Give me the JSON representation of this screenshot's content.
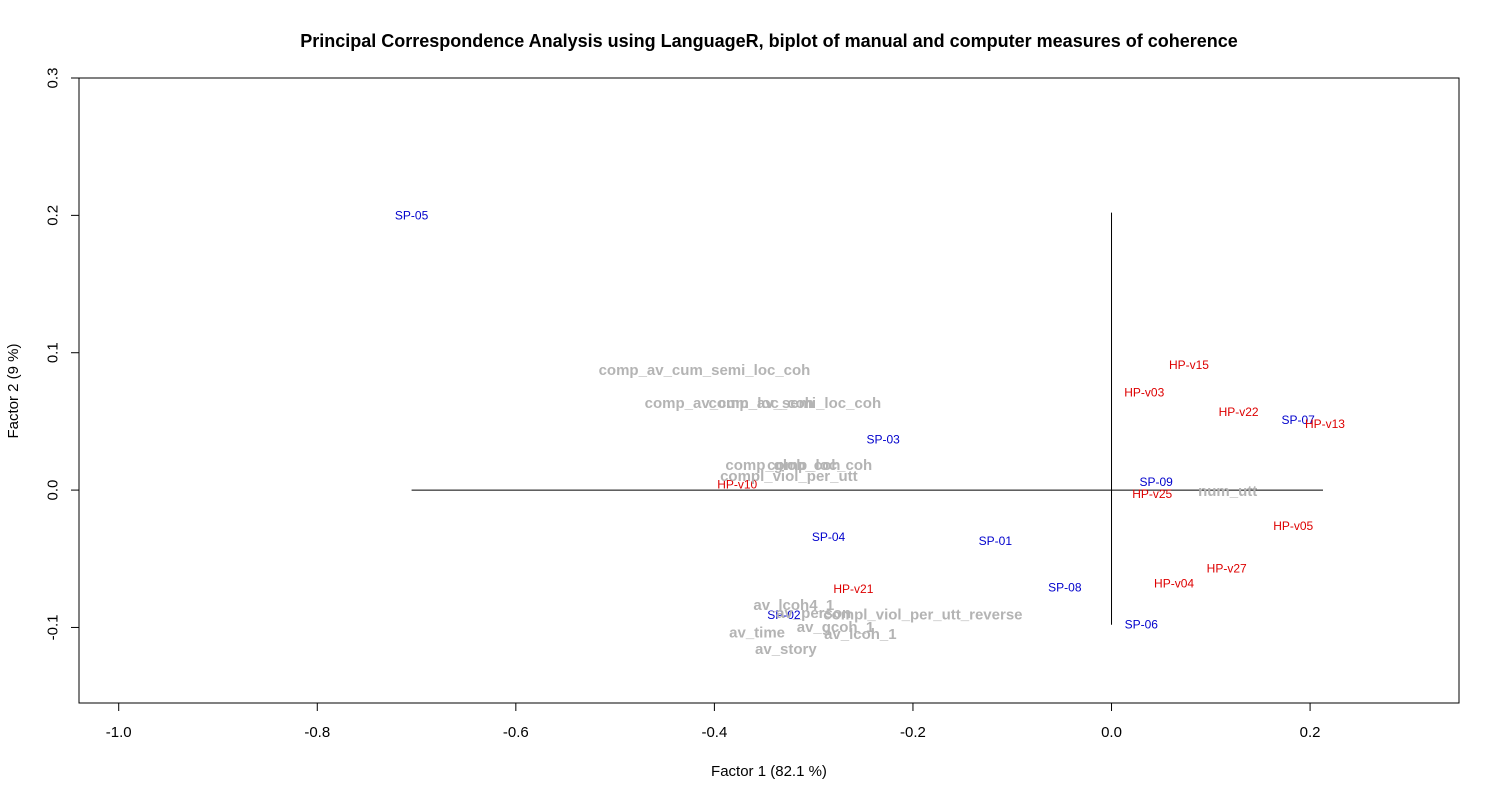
{
  "chart_data": {
    "type": "scatter",
    "title": "Principal Correspondence Analysis using LanguageR, biplot of manual and computer measures of coherence",
    "xlabel": "Factor 1  (82.1 %)",
    "ylabel": "Factor 2  (9 %)",
    "xlim": [
      -1.04,
      0.35
    ],
    "ylim": [
      -0.155,
      0.3
    ],
    "xticks": [
      -1.0,
      -0.8,
      -0.6,
      -0.4,
      -0.2,
      0.0,
      0.2
    ],
    "xtick_labels": [
      "-1.0",
      "-0.8",
      "-0.6",
      "-0.4",
      "-0.2",
      "0.0",
      "0.2"
    ],
    "yticks": [
      -0.1,
      0.0,
      0.1,
      0.2,
      0.3
    ],
    "ytick_labels": [
      "-0.1",
      "0.0",
      "0.1",
      "0.2",
      "0.3"
    ],
    "grid": false,
    "reference_lines": {
      "horizontal": {
        "y": 0.0,
        "x_from": -0.705,
        "x_to": 0.213
      },
      "vertical": {
        "x": 0.0,
        "y_from": -0.098,
        "y_to": 0.202
      }
    },
    "colors": {
      "sp": "#0000cc",
      "hp": "#dd0000",
      "variables": "#b4b4b4"
    },
    "series": [
      {
        "name": "SP",
        "color_key": "sp",
        "points": [
          {
            "label": "SP-05",
            "x": -0.705,
            "y": 0.2
          },
          {
            "label": "SP-03",
            "x": -0.23,
            "y": 0.037
          },
          {
            "label": "SP-09",
            "x": 0.045,
            "y": 0.006
          },
          {
            "label": "SP-07",
            "x": 0.188,
            "y": 0.051
          },
          {
            "label": "SP-04",
            "x": -0.285,
            "y": -0.034
          },
          {
            "label": "SP-01",
            "x": -0.117,
            "y": -0.037
          },
          {
            "label": "SP-08",
            "x": -0.047,
            "y": -0.071
          },
          {
            "label": "SP-06",
            "x": 0.03,
            "y": -0.098
          },
          {
            "label": "SP-02",
            "x": -0.33,
            "y": -0.091
          }
        ]
      },
      {
        "name": "HP",
        "color_key": "hp",
        "points": [
          {
            "label": "HP-v15",
            "x": 0.078,
            "y": 0.091
          },
          {
            "label": "HP-v03",
            "x": 0.033,
            "y": 0.071
          },
          {
            "label": "HP-v22",
            "x": 0.128,
            "y": 0.057
          },
          {
            "label": "HP-v13",
            "x": 0.215,
            "y": 0.048
          },
          {
            "label": "HP-v10",
            "x": -0.377,
            "y": 0.004
          },
          {
            "label": "HP-v25",
            "x": 0.041,
            "y": -0.003
          },
          {
            "label": "HP-v05",
            "x": 0.183,
            "y": -0.026
          },
          {
            "label": "HP-v27",
            "x": 0.116,
            "y": -0.057
          },
          {
            "label": "HP-v04",
            "x": 0.063,
            "y": -0.068
          },
          {
            "label": "HP-v21",
            "x": -0.26,
            "y": -0.072
          }
        ]
      },
      {
        "name": "variables",
        "color_key": "variables",
        "points": [
          {
            "label": "comp_av_cum_semi_loc_coh",
            "x": -0.41,
            "y": 0.087
          },
          {
            "label": "comp_av_cum_loc_coh",
            "x": -0.385,
            "y": 0.063
          },
          {
            "label": "comp_av_semi_loc_coh",
            "x": -0.319,
            "y": 0.063
          },
          {
            "label": "comp_glob_coh",
            "x": -0.331,
            "y": 0.018
          },
          {
            "label": "comp_loc_coh",
            "x": -0.294,
            "y": 0.018
          },
          {
            "label": "compl_viol_per_utt",
            "x": -0.325,
            "y": 0.01
          },
          {
            "label": "num_utt",
            "x": 0.117,
            "y": -0.001
          },
          {
            "label": "av_lcoh4_1",
            "x": -0.32,
            "y": -0.084
          },
          {
            "label": "av_person",
            "x": -0.3,
            "y": -0.09
          },
          {
            "label": "compl_viol_per_utt_reverse",
            "x": -0.19,
            "y": -0.091
          },
          {
            "label": "av_gcoh_1",
            "x": -0.278,
            "y": -0.1
          },
          {
            "label": "av_lcoh_1",
            "x": -0.253,
            "y": -0.105
          },
          {
            "label": "av_time",
            "x": -0.357,
            "y": -0.104
          },
          {
            "label": "av_story",
            "x": -0.328,
            "y": -0.116
          }
        ]
      }
    ]
  }
}
